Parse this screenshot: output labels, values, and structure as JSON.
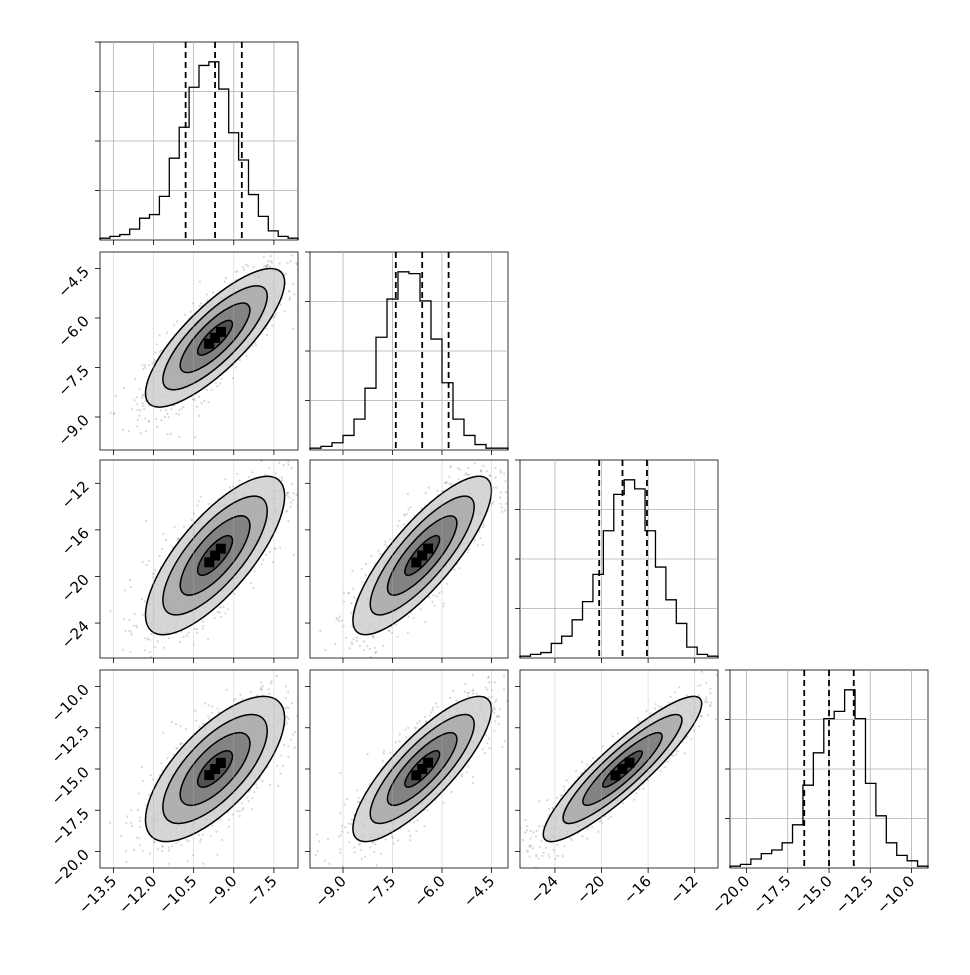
{
  "chart_data": {
    "type": "corner",
    "title": "",
    "grid": true,
    "parameters": [
      {
        "index": 0,
        "range": [
          -14.0,
          -6.6
        ],
        "quantiles": [
          -10.8,
          -9.7,
          -8.7
        ],
        "x_ticks": [
          -13.5,
          -12.0,
          -10.5,
          -9.0,
          -7.5
        ],
        "x_tick_labels": [
          "−13.5",
          "−12.0",
          "−10.5",
          "−9.0",
          "−7.5"
        ],
        "y_ticks": [],
        "y_tick_labels": []
      },
      {
        "index": 1,
        "range": [
          -10.0,
          -4.0
        ],
        "quantiles": [
          -7.4,
          -6.6,
          -5.8
        ],
        "x_ticks": [
          -9.0,
          -7.5,
          -6.0,
          -4.5
        ],
        "x_tick_labels": [
          "−9.0",
          "−7.5",
          "−6.0",
          "−4.5"
        ],
        "y_ticks": [
          -4.5,
          -6.0,
          -7.5,
          -9.0
        ],
        "y_tick_labels": [
          "−4.5",
          "−6.0",
          "−7.5",
          "−9.0"
        ]
      },
      {
        "index": 2,
        "range": [
          -27.0,
          -10.0
        ],
        "quantiles": [
          -20.2,
          -18.2,
          -16.1
        ],
        "x_ticks": [
          -24,
          -20,
          -16,
          -12
        ],
        "x_tick_labels": [
          "−24",
          "−20",
          "−16",
          "−12"
        ],
        "y_ticks": [
          -12,
          -16,
          -20,
          -24
        ],
        "y_tick_labels": [
          "−12",
          "−16",
          "−20",
          "−24"
        ]
      },
      {
        "index": 3,
        "range": [
          -21.0,
          -9.0
        ],
        "quantiles": [
          -16.5,
          -15.0,
          -13.5
        ],
        "x_ticks": [
          -20.0,
          -17.5,
          -15.0,
          -12.5,
          -10.0
        ],
        "x_tick_labels": [
          "−20.0",
          "−17.5",
          "−15.0",
          "−12.5",
          "−10.0"
        ],
        "y_ticks": [
          -10.0,
          -12.5,
          -15.0,
          -17.5,
          -20.0
        ],
        "y_tick_labels": [
          "−10.0",
          "−12.5",
          "−15.0",
          "−17.5",
          "−20.0"
        ]
      }
    ],
    "histograms": [
      {
        "param": 0,
        "counts": [
          1,
          2,
          3,
          6,
          12,
          14,
          24,
          45,
          62,
          84,
          96,
          98,
          83,
          59,
          44,
          25,
          13,
          5,
          2,
          1
        ]
      },
      {
        "param": 1,
        "counts": [
          1,
          2,
          4,
          8,
          17,
          34,
          62,
          83,
          98,
          97,
          82,
          61,
          37,
          17,
          8,
          3,
          1,
          1
        ]
      },
      {
        "param": 2,
        "counts": [
          1,
          2,
          3,
          8,
          12,
          21,
          31,
          46,
          70,
          90,
          98,
          93,
          70,
          50,
          32,
          19,
          6,
          2,
          1
        ]
      },
      {
        "param": 3,
        "counts": [
          1,
          2,
          5,
          8,
          10,
          14,
          24,
          46,
          64,
          83,
          87,
          99,
          83,
          47,
          29,
          14,
          7,
          4,
          1
        ]
      }
    ],
    "pairs": [
      {
        "x": 0,
        "y": 1,
        "mean": [
          -9.7,
          -6.6
        ],
        "std": [
          1.3,
          1.05
        ],
        "corr": 0.8
      },
      {
        "x": 0,
        "y": 2,
        "mean": [
          -9.7,
          -18.2
        ],
        "std": [
          1.3,
          3.4
        ],
        "corr": 0.75
      },
      {
        "x": 1,
        "y": 2,
        "mean": [
          -6.6,
          -18.2
        ],
        "std": [
          1.05,
          3.4
        ],
        "corr": 0.82
      },
      {
        "x": 0,
        "y": 3,
        "mean": [
          -9.7,
          -15.0
        ],
        "std": [
          1.3,
          2.2
        ],
        "corr": 0.7
      },
      {
        "x": 1,
        "y": 3,
        "mean": [
          -6.6,
          -15.0
        ],
        "std": [
          1.05,
          2.2
        ],
        "corr": 0.82
      },
      {
        "x": 2,
        "y": 3,
        "mean": [
          -18.2,
          -15.0
        ],
        "std": [
          3.4,
          2.2
        ],
        "corr": 0.9
      }
    ],
    "contour_levels_sigma": [
      0.5,
      1.0,
      1.5,
      2.0
    ]
  }
}
